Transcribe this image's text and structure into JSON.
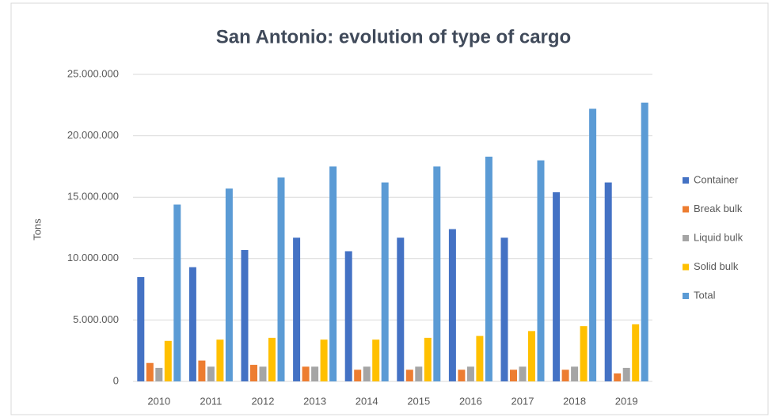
{
  "chart_data": {
    "type": "bar",
    "title": "San Antonio: evolution of type of cargo",
    "y_label": "Tons",
    "categories": [
      "2010",
      "2011",
      "2012",
      "2013",
      "2014",
      "2015",
      "2016",
      "2017",
      "2018",
      "2019"
    ],
    "series": [
      {
        "name": "Container",
        "color": "#4472c4",
        "values": [
          8500000,
          9300000,
          10700000,
          11700000,
          10600000,
          11700000,
          12400000,
          11700000,
          15400000,
          16200000
        ]
      },
      {
        "name": "Break bulk",
        "color": "#ed7d31",
        "values": [
          1500000,
          1700000,
          1350000,
          1200000,
          950000,
          950000,
          950000,
          950000,
          950000,
          650000
        ]
      },
      {
        "name": "Liquid bulk",
        "color": "#a5a5a5",
        "values": [
          1100000,
          1200000,
          1200000,
          1200000,
          1200000,
          1200000,
          1200000,
          1200000,
          1200000,
          1100000
        ]
      },
      {
        "name": "Solid bulk",
        "color": "#ffc000",
        "values": [
          3300000,
          3400000,
          3550000,
          3400000,
          3400000,
          3550000,
          3700000,
          4100000,
          4500000,
          4650000
        ]
      },
      {
        "name": "Total",
        "color": "#5b9bd5",
        "values": [
          14400000,
          15700000,
          16600000,
          17500000,
          16200000,
          17500000,
          18300000,
          18000000,
          22200000,
          22700000
        ]
      }
    ],
    "ylim": [
      0,
      25000000
    ],
    "yticks": [
      0,
      {
        "value": 5000000,
        "label": "5.000.000"
      },
      {
        "value": 10000000,
        "label": "10.000.000"
      },
      {
        "value": 15000000,
        "label": "15.000.000"
      },
      {
        "value": 20000000,
        "label": "20.000.000"
      },
      {
        "value": 25000000,
        "label": "25.000.000"
      }
    ],
    "grid": true,
    "legend": "right"
  }
}
